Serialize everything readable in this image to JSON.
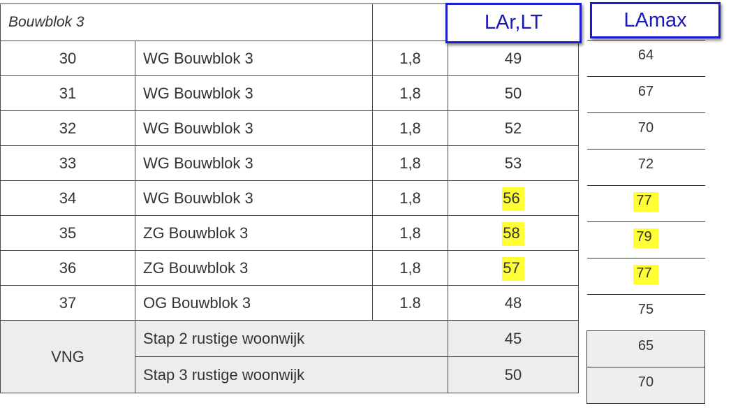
{
  "section_label": "Bouwblok 3",
  "headers": {
    "lart": "LAr,LT",
    "lamax": "LAmax"
  },
  "rows": [
    {
      "nr": "30",
      "name": "WG Bouwblok 3",
      "height": "1,8",
      "lart": "49",
      "lamax": "64"
    },
    {
      "nr": "31",
      "name": "WG Bouwblok 3",
      "height": "1,8",
      "lart": "50",
      "lamax": "67"
    },
    {
      "nr": "32",
      "name": "WG Bouwblok 3",
      "height": "1,8",
      "lart": "52",
      "lamax": "70"
    },
    {
      "nr": "33",
      "name": "WG Bouwblok 3",
      "height": "1,8",
      "lart": "53",
      "lamax": "72"
    },
    {
      "nr": "34",
      "name": "WG Bouwblok 3",
      "height": "1,8",
      "lart": "56",
      "lamax": "77"
    },
    {
      "nr": "35",
      "name": "ZG Bouwblok 3",
      "height": "1,8",
      "lart": "58",
      "lamax": "79"
    },
    {
      "nr": "36",
      "name": "ZG Bouwblok 3",
      "height": "1,8",
      "lart": "57",
      "lamax": "77"
    },
    {
      "nr": "37",
      "name": "OG Bouwblok 3",
      "height": "1.8",
      "lart": "48",
      "lamax": "75"
    }
  ],
  "vng": {
    "label": "VNG",
    "rows": [
      {
        "desc": "Stap 2 rustige woonwijk",
        "lart": "45",
        "lamax": "65"
      },
      {
        "desc": "Stap 3 rustige woonwijk",
        "lart": "50",
        "lamax": "70"
      }
    ]
  },
  "highlight_color": "#ffff33",
  "header_box_color": "#1c1ccc"
}
